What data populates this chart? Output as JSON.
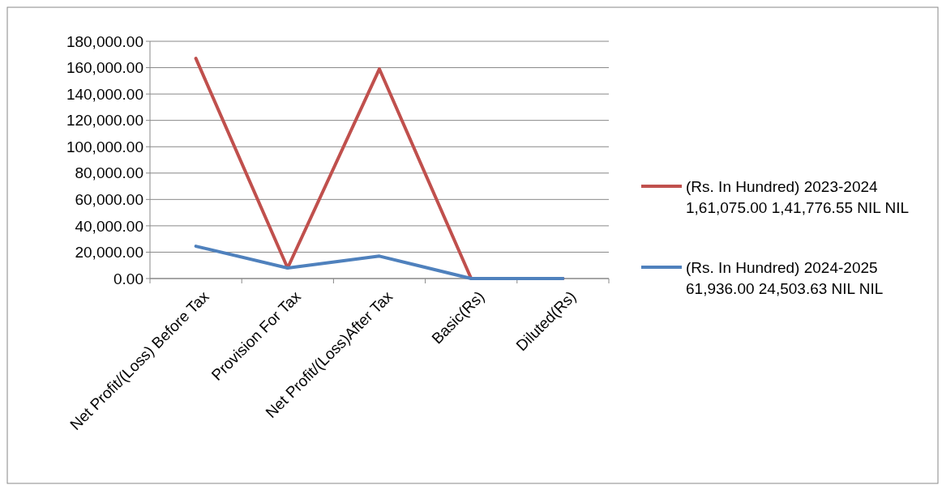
{
  "chart_data": {
    "type": "line",
    "categories": [
      "Net Profit/(Loss) Before Tax",
      "Provision For Tax",
      "Net Profit/(Loss)After Tax",
      "Basic(Rs)",
      "Diluted(Rs)"
    ],
    "series": [
      {
        "name": "(Rs. In Hundred) 2023-2024 1,61,075.00 1,41,776.55 NIL NIL",
        "color": "#c0504d",
        "values": [
          167000,
          8000,
          159000,
          0,
          0
        ]
      },
      {
        "name": "(Rs. In Hundred) 2024-2025 61,936.00 24,503.63 NIL NIL",
        "color": "#4f81bd",
        "values": [
          24500,
          8000,
          17000,
          0,
          0
        ]
      }
    ],
    "ylim": [
      0,
      180000
    ],
    "yticks": [
      {
        "value": 0,
        "label": "0.00"
      },
      {
        "value": 20000,
        "label": "20,000.00"
      },
      {
        "value": 40000,
        "label": "40,000.00"
      },
      {
        "value": 60000,
        "label": "60,000.00"
      },
      {
        "value": 80000,
        "label": "80,000.00"
      },
      {
        "value": 100000,
        "label": "100,000.00"
      },
      {
        "value": 120000,
        "label": "120,000.00"
      },
      {
        "value": 140000,
        "label": "140,000.00"
      },
      {
        "value": 160000,
        "label": "160,000.00"
      },
      {
        "value": 180000,
        "label": "180,000.00"
      }
    ],
    "grid": "y",
    "legend": "right",
    "marker": "none",
    "line_style": "solid"
  }
}
